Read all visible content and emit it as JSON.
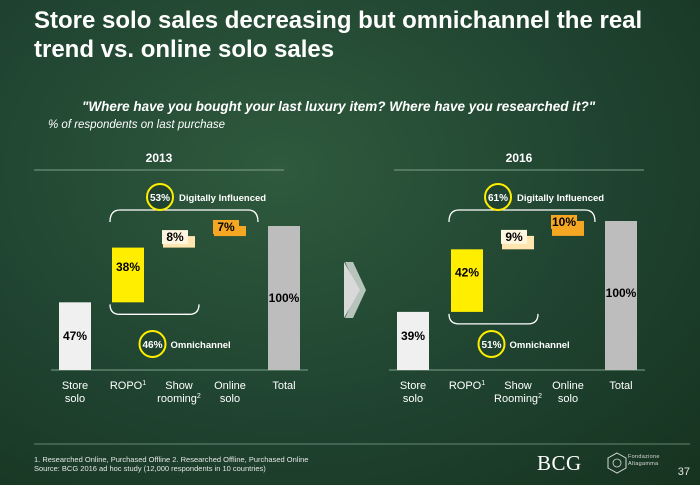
{
  "title": "Store solo sales decreasing but omnichannel  the real trend vs. online solo sales",
  "question": "\"Where have you bought your last luxury item? Where have you researched it?\"",
  "subtitle": "% of respondents on last purchase",
  "footnotes": {
    "line1": "1. Researched Online,  Purchased Offline  2. Researched Offline, Purchased Online",
    "line2": "Source: BCG 2016 ad hoc study (12,000 respondents in 10 countries)"
  },
  "page_number": "37",
  "logos": {
    "bcg": "BCG",
    "altagamma": "Fondazione Altagamma"
  },
  "colors": {
    "store": "#f0f0f0",
    "ropo": "#ffee00",
    "showrooming": "#ffe6b0",
    "online": "#f5a623",
    "total": "#bdbdbd",
    "circle": "#ffee00",
    "divider": "#7fa08a"
  },
  "chart_data": [
    {
      "type": "bar",
      "subtype": "waterfall",
      "title": "2013",
      "categories": [
        "Store solo",
        "ROPO",
        "Show rooming",
        "Online solo",
        "Total"
      ],
      "category_superscripts": [
        "",
        "1",
        "2",
        "",
        ""
      ],
      "values": [
        47,
        38,
        8,
        7,
        100
      ],
      "value_labels": [
        "47%",
        "38%",
        "8%",
        "7%",
        "100%"
      ],
      "ylim": [
        0,
        100
      ],
      "annotations": {
        "digitally_influenced": {
          "value": "53%",
          "label": "Digitally Influenced"
        },
        "omnichannel": {
          "value": "46%",
          "label": "Omnichannel"
        }
      }
    },
    {
      "type": "bar",
      "subtype": "waterfall",
      "title": "2016",
      "categories": [
        "Store solo",
        "ROPO",
        "Show Rooming",
        "Online solo",
        "Total"
      ],
      "category_superscripts": [
        "",
        "1",
        "2",
        "",
        ""
      ],
      "values": [
        39,
        42,
        9,
        10,
        100
      ],
      "value_labels": [
        "39%",
        "42%",
        "9%",
        "10%",
        "100%"
      ],
      "ylim": [
        0,
        100
      ],
      "annotations": {
        "digitally_influenced": {
          "value": "61%",
          "label": "Digitally Influenced"
        },
        "omnichannel": {
          "value": "51%",
          "label": "Omnichannel"
        }
      }
    }
  ]
}
